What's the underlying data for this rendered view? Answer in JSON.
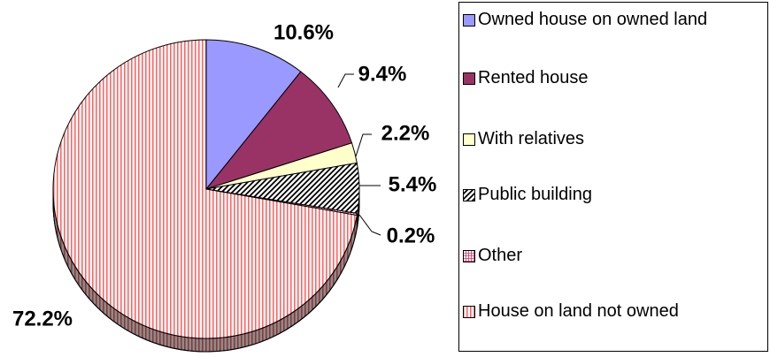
{
  "chart_data": {
    "type": "pie",
    "categories": [
      "Owned house on owned land",
      "Rented house",
      "With relatives",
      "Public building",
      "Other",
      "House on land not owned"
    ],
    "values": [
      10.6,
      9.4,
      2.2,
      5.4,
      0.2,
      72.2
    ],
    "value_labels": [
      "10.6%",
      "9.4%",
      "2.2%",
      "5.4%",
      "0.2%",
      "72.2%"
    ],
    "colors": [
      "#9999ff",
      "#993366",
      "#ffffcc",
      "#000000",
      "#cc3366",
      "#ff6666"
    ],
    "patterns": [
      "solid",
      "solid",
      "solid",
      "diagonal",
      "grid",
      "vertical"
    ],
    "legend": "right"
  }
}
